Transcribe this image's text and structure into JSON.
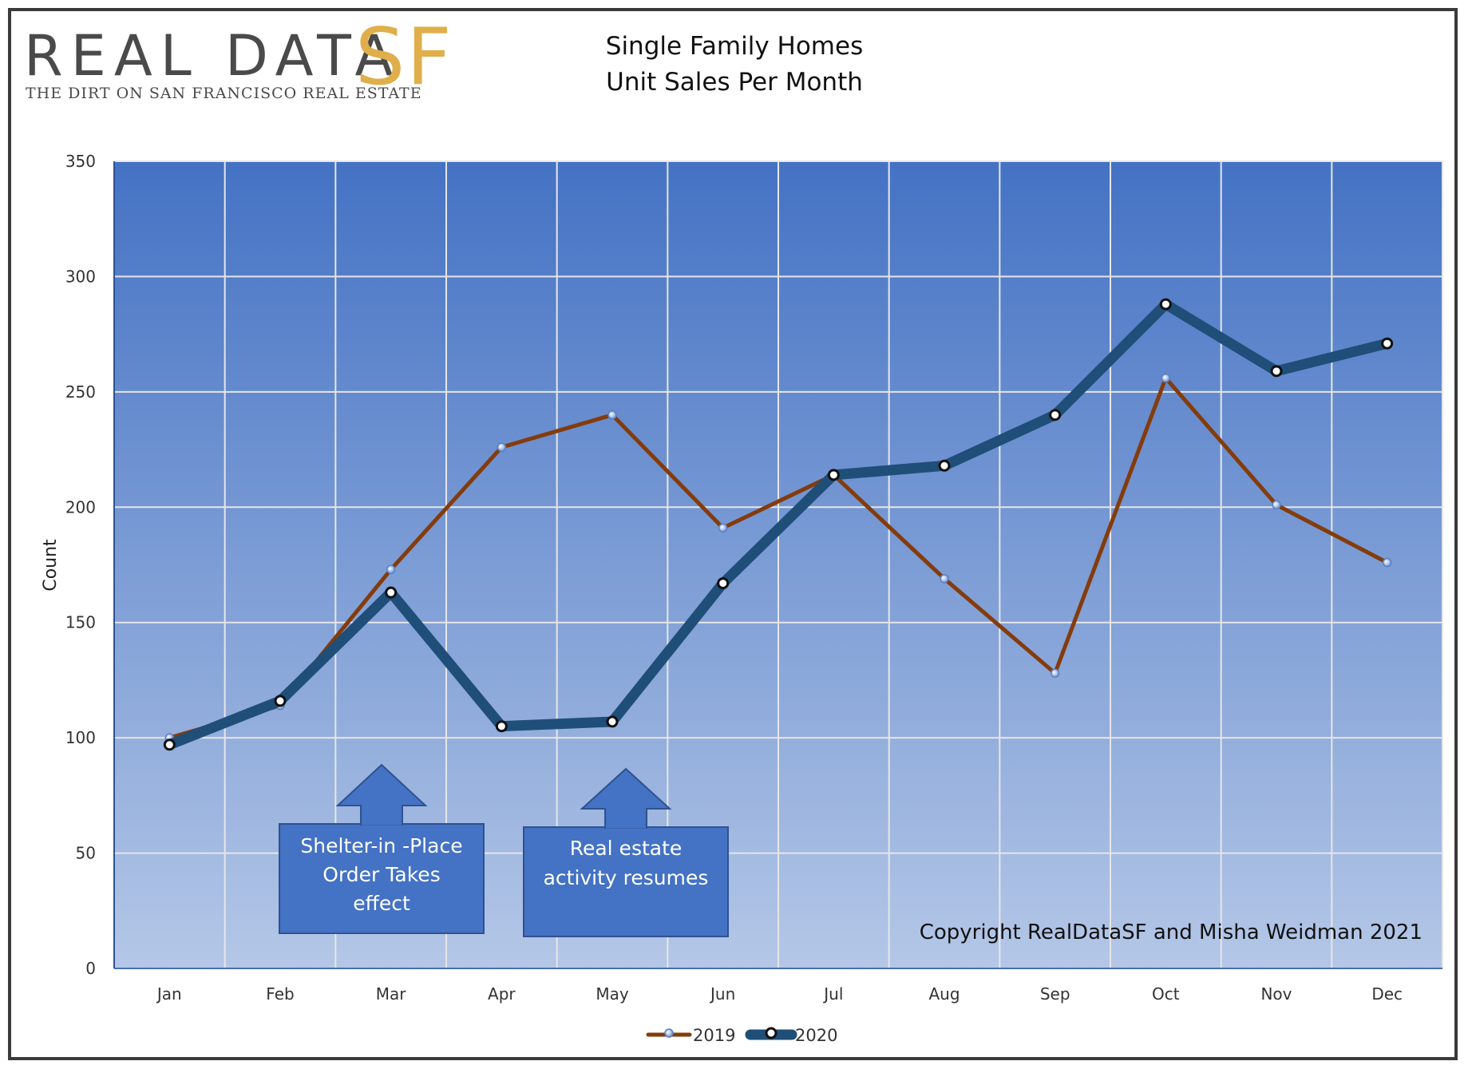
{
  "logo": {
    "main": "REAL DATA",
    "sf": "SF",
    "tagline": "THE DIRT ON SAN FRANCISCO REAL ESTATE"
  },
  "annotations": {
    "shelter": [
      "Shelter-in -Place",
      "Order Takes",
      "effect"
    ],
    "resumes": [
      "Real estate",
      "activity resumes"
    ],
    "copyright": "Copyright RealDataSF and Misha Weidman 2021"
  },
  "colors": {
    "plot_top": "#4472c4",
    "plot_bottom": "#b4c7e7",
    "gridline": "#e6e6e6",
    "series_2019": "#843c0c",
    "series_2020": "#1f4e79",
    "callout_fill": "#4472c4",
    "callout_border": "#2f528f",
    "logo_sf": "#e0ae4a"
  },
  "chart_data": {
    "type": "line",
    "title": [
      "Single Family Homes",
      "Unit Sales Per Month"
    ],
    "xlabel": "",
    "ylabel": "Count",
    "ylim": [
      0,
      350
    ],
    "yticks": [
      0,
      50,
      100,
      150,
      200,
      250,
      300,
      350
    ],
    "grid": true,
    "legend_position": "bottom",
    "categories": [
      "Jan",
      "Feb",
      "Mar",
      "Apr",
      "May",
      "Jun",
      "Jul",
      "Aug",
      "Sep",
      "Oct",
      "Nov",
      "Dec"
    ],
    "series": [
      {
        "name": "2019",
        "values": [
          100,
          114,
          173,
          226,
          240,
          191,
          214,
          169,
          128,
          256,
          201,
          176
        ]
      },
      {
        "name": "2020",
        "values": [
          97,
          116,
          163,
          105,
          107,
          167,
          214,
          218,
          240,
          288,
          259,
          271
        ]
      }
    ]
  }
}
